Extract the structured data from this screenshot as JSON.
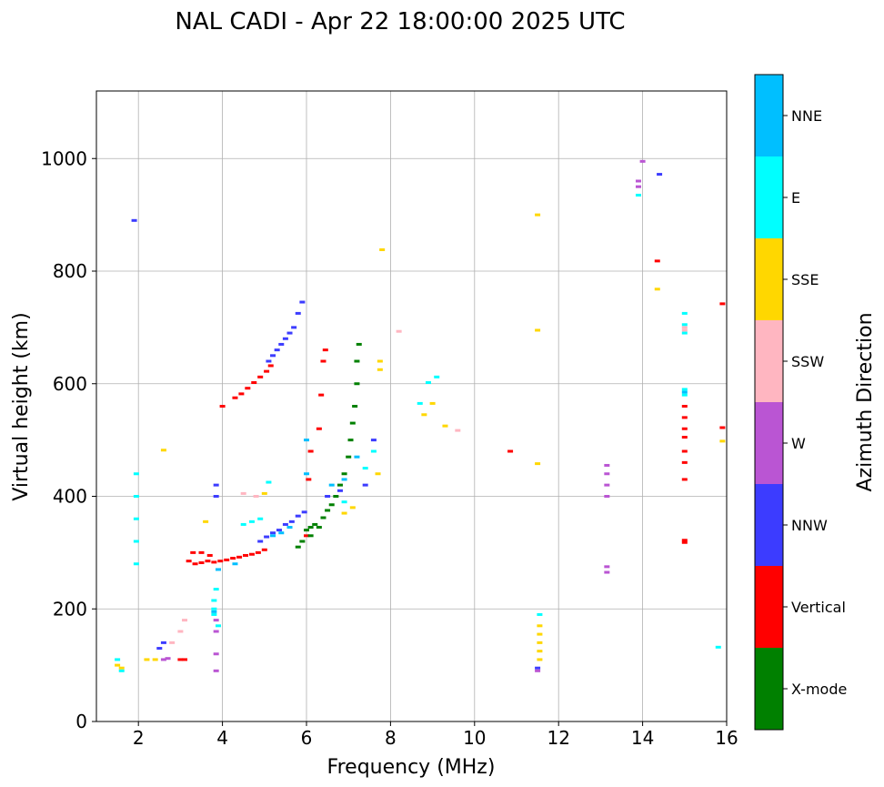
{
  "chart_data": {
    "type": "scatter",
    "title": "NAL CADI - Apr 22 18:00:00 2025 UTC",
    "xlabel": "Frequency (MHz)",
    "ylabel": "Virtual height (km)",
    "xlim": [
      1.0,
      16.0
    ],
    "ylim": [
      0,
      1120
    ],
    "xticks": [
      2,
      4,
      6,
      8,
      10,
      12,
      14,
      16
    ],
    "yticks": [
      0,
      200,
      400,
      600,
      800,
      1000
    ],
    "grid": true,
    "colorbar": {
      "label": "Azimuth Direction",
      "categories": [
        {
          "name": "X-mode",
          "color": "#008000"
        },
        {
          "name": "Vertical",
          "color": "#ff0000"
        },
        {
          "name": "NNW",
          "color": "#3c3cff"
        },
        {
          "name": "W",
          "color": "#ba55d3"
        },
        {
          "name": "SSW",
          "color": "#ffb6c1"
        },
        {
          "name": "SSE",
          "color": "#ffd700"
        },
        {
          "name": "E",
          "color": "#00ffff"
        },
        {
          "name": "NNE",
          "color": "#00bfff"
        }
      ]
    },
    "series": [
      {
        "name": "Vertical",
        "points": [
          [
            3.2,
            285
          ],
          [
            3.35,
            280
          ],
          [
            3.5,
            282
          ],
          [
            3.65,
            285
          ],
          [
            3.8,
            283
          ],
          [
            3.95,
            285
          ],
          [
            4.1,
            287
          ],
          [
            4.25,
            290
          ],
          [
            4.4,
            292
          ],
          [
            4.55,
            295
          ],
          [
            4.7,
            297
          ],
          [
            4.85,
            300
          ],
          [
            5.0,
            305
          ],
          [
            3.0,
            110
          ],
          [
            3.1,
            110
          ],
          [
            3.3,
            300
          ],
          [
            3.5,
            300
          ],
          [
            3.7,
            295
          ],
          [
            6.0,
            330
          ],
          [
            6.05,
            430
          ],
          [
            6.1,
            480
          ],
          [
            6.3,
            520
          ],
          [
            6.35,
            580
          ],
          [
            6.4,
            640
          ],
          [
            6.45,
            660
          ],
          [
            4.3,
            575
          ],
          [
            4.45,
            582
          ],
          [
            4.6,
            592
          ],
          [
            4.75,
            602
          ],
          [
            4.9,
            612
          ],
          [
            5.05,
            622
          ],
          [
            5.15,
            632
          ],
          [
            4.0,
            560
          ],
          [
            10.85,
            480
          ],
          [
            14.35,
            818
          ],
          [
            15.9,
            742
          ],
          [
            15.9,
            522
          ],
          [
            15.0,
            322
          ],
          [
            15.0,
            318
          ],
          [
            15.0,
            430
          ],
          [
            15.0,
            460
          ],
          [
            15.0,
            480
          ],
          [
            15.0,
            505
          ],
          [
            15.0,
            520
          ],
          [
            15.0,
            540
          ],
          [
            15.0,
            560
          ]
        ]
      },
      {
        "name": "X-mode",
        "points": [
          [
            6.0,
            340
          ],
          [
            6.1,
            345
          ],
          [
            6.2,
            350
          ],
          [
            6.4,
            362
          ],
          [
            6.5,
            375
          ],
          [
            6.6,
            385
          ],
          [
            6.7,
            400
          ],
          [
            6.8,
            420
          ],
          [
            6.9,
            440
          ],
          [
            7.0,
            470
          ],
          [
            7.05,
            500
          ],
          [
            7.1,
            530
          ],
          [
            7.15,
            560
          ],
          [
            7.2,
            600
          ],
          [
            7.2,
            640
          ],
          [
            7.25,
            670
          ],
          [
            6.1,
            330
          ],
          [
            6.3,
            345
          ],
          [
            5.9,
            320
          ],
          [
            5.8,
            310
          ]
        ]
      },
      {
        "name": "NNW",
        "points": [
          [
            4.9,
            320
          ],
          [
            5.05,
            328
          ],
          [
            5.2,
            335
          ],
          [
            5.35,
            340
          ],
          [
            5.5,
            350
          ],
          [
            5.65,
            355
          ],
          [
            5.8,
            365
          ],
          [
            5.95,
            372
          ],
          [
            5.1,
            640
          ],
          [
            5.2,
            650
          ],
          [
            5.3,
            660
          ],
          [
            5.4,
            670
          ],
          [
            5.5,
            680
          ],
          [
            5.6,
            690
          ],
          [
            5.7,
            700
          ],
          [
            5.8,
            725
          ],
          [
            5.9,
            745
          ],
          [
            3.85,
            400
          ],
          [
            3.85,
            420
          ],
          [
            6.5,
            400
          ],
          [
            6.8,
            410
          ],
          [
            7.4,
            420
          ],
          [
            7.6,
            500
          ],
          [
            1.9,
            890
          ],
          [
            11.5,
            95
          ],
          [
            14.4,
            972
          ],
          [
            2.5,
            130
          ],
          [
            2.6,
            140
          ]
        ]
      },
      {
        "name": "W",
        "points": [
          [
            3.85,
            90
          ],
          [
            3.85,
            120
          ],
          [
            3.85,
            160
          ],
          [
            3.85,
            180
          ],
          [
            13.15,
            400
          ],
          [
            13.15,
            420
          ],
          [
            13.15,
            440
          ],
          [
            13.15,
            455
          ],
          [
            13.15,
            275
          ],
          [
            13.15,
            265
          ],
          [
            13.9,
            960
          ],
          [
            13.9,
            950
          ],
          [
            14.0,
            995
          ],
          [
            2.6,
            110
          ],
          [
            2.7,
            112
          ],
          [
            11.5,
            90
          ]
        ]
      },
      {
        "name": "SSW",
        "points": [
          [
            3.0,
            160
          ],
          [
            3.1,
            180
          ],
          [
            2.8,
            140
          ],
          [
            8.2,
            693
          ],
          [
            9.6,
            517
          ],
          [
            4.5,
            405
          ],
          [
            4.8,
            400
          ],
          [
            15.0,
            700
          ],
          [
            15.0,
            695
          ]
        ]
      },
      {
        "name": "SSE",
        "points": [
          [
            1.5,
            100
          ],
          [
            1.6,
            95
          ],
          [
            2.2,
            110
          ],
          [
            2.4,
            110
          ],
          [
            5.0,
            405
          ],
          [
            6.9,
            370
          ],
          [
            7.1,
            380
          ],
          [
            7.7,
            440
          ],
          [
            7.75,
            625
          ],
          [
            7.75,
            640
          ],
          [
            7.8,
            838
          ],
          [
            8.8,
            545
          ],
          [
            9.0,
            565
          ],
          [
            9.3,
            525
          ],
          [
            11.5,
            900
          ],
          [
            11.5,
            695
          ],
          [
            11.5,
            458
          ],
          [
            11.55,
            110
          ],
          [
            11.55,
            125
          ],
          [
            11.55,
            140
          ],
          [
            11.55,
            155
          ],
          [
            11.55,
            170
          ],
          [
            14.35,
            768
          ],
          [
            15.9,
            498
          ],
          [
            2.6,
            482
          ],
          [
            3.6,
            355
          ]
        ]
      },
      {
        "name": "E",
        "points": [
          [
            1.5,
            110
          ],
          [
            1.6,
            90
          ],
          [
            3.8,
            190
          ],
          [
            3.8,
            200
          ],
          [
            3.8,
            215
          ],
          [
            3.85,
            235
          ],
          [
            3.9,
            170
          ],
          [
            4.5,
            350
          ],
          [
            4.7,
            355
          ],
          [
            4.9,
            360
          ],
          [
            5.1,
            425
          ],
          [
            6.9,
            390
          ],
          [
            7.4,
            450
          ],
          [
            7.6,
            480
          ],
          [
            8.7,
            565
          ],
          [
            8.9,
            602
          ],
          [
            9.1,
            612
          ],
          [
            13.9,
            935
          ],
          [
            15.0,
            590
          ],
          [
            15.0,
            580
          ],
          [
            15.0,
            725
          ],
          [
            15.0,
            705
          ],
          [
            15.0,
            690
          ],
          [
            11.55,
            190
          ],
          [
            1.95,
            440
          ],
          [
            1.95,
            400
          ],
          [
            1.95,
            360
          ],
          [
            1.95,
            320
          ],
          [
            1.95,
            280
          ],
          [
            15.8,
            132
          ]
        ]
      },
      {
        "name": "NNE",
        "points": [
          [
            3.8,
            195
          ],
          [
            5.2,
            330
          ],
          [
            5.4,
            335
          ],
          [
            5.6,
            345
          ],
          [
            6.0,
            440
          ],
          [
            6.0,
            500
          ],
          [
            6.6,
            420
          ],
          [
            6.9,
            430
          ],
          [
            7.2,
            470
          ],
          [
            15.0,
            585
          ],
          [
            3.9,
            270
          ],
          [
            4.3,
            280
          ]
        ]
      }
    ]
  }
}
